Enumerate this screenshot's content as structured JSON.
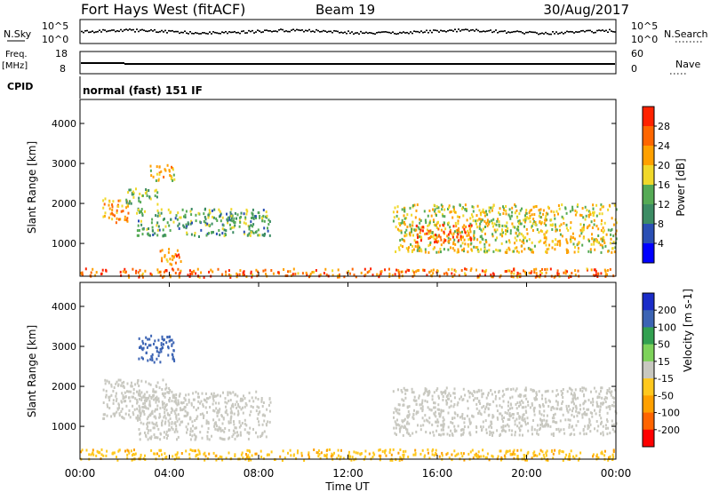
{
  "header": {
    "station": "Fort Hays West (fitACF)",
    "beam": "Beam 19",
    "date": "30/Aug/2017"
  },
  "panels": {
    "nsky_label": "N.Sky",
    "nsearch_label": "N.Search",
    "noise_ticks": [
      "10^5",
      "10^0"
    ],
    "freq_label": "Freq.",
    "freq_unit": "[MHz]",
    "freq_ticks": [
      "18",
      "8"
    ],
    "nave_label": "Nave",
    "nave_ticks": [
      "60",
      "0"
    ],
    "cpid_label": "CPID",
    "cpid_value": "normal (fast) 151 IF"
  },
  "colors": {
    "power_scale": [
      "#0000ff",
      "#2a4fb4",
      "#3c8c64",
      "#55aa55",
      "#f0d82a",
      "#ffa000",
      "#ff6600",
      "#ff2200"
    ],
    "velocity_scale": [
      "#1a2cc8",
      "#3c64b4",
      "#32a050",
      "#7dd25a",
      "#c8c8c0",
      "#ffc81e",
      "#ffa000",
      "#ff6400",
      "#ff0000"
    ]
  },
  "chart_data": [
    {
      "type": "heatmap",
      "name": "power",
      "xlabel": "",
      "ylabel": "Slant Range [km]",
      "xlim": [
        "00:00",
        "24:00"
      ],
      "ylim": [
        180,
        4600
      ],
      "yticks": [
        1000,
        2000,
        3000,
        4000
      ],
      "colorbar": {
        "label": "Power [dB]",
        "ticks": [
          4,
          8,
          12,
          16,
          20,
          24,
          28
        ],
        "range": [
          0,
          32
        ]
      },
      "features": [
        {
          "t_start": 1.0,
          "t_end": 2.2,
          "range_start": 1550,
          "range_end": 2150,
          "value": 22
        },
        {
          "t_start": 2.0,
          "t_end": 3.5,
          "range_start": 2000,
          "range_end": 2400,
          "value": 14
        },
        {
          "t_start": 3.0,
          "t_end": 4.2,
          "range_start": 2600,
          "range_end": 3000,
          "value": 20
        },
        {
          "t_start": 2.5,
          "t_end": 8.5,
          "range_start": 1200,
          "range_end": 1900,
          "value": 13
        },
        {
          "t_start": 3.5,
          "t_end": 4.5,
          "range_start": 500,
          "range_end": 900,
          "value": 24
        },
        {
          "t_start": 0.0,
          "t_end": 24.0,
          "range_start": 180,
          "range_end": 400,
          "value": 25
        },
        {
          "t_start": 14.0,
          "t_end": 24.0,
          "range_start": 800,
          "range_end": 2000,
          "value": 18
        },
        {
          "t_start": 15.0,
          "t_end": 17.5,
          "range_start": 1050,
          "range_end": 1500,
          "value": 26
        }
      ]
    },
    {
      "type": "heatmap",
      "name": "velocity",
      "xlabel": "Time UT",
      "ylabel": "Slant Range [km]",
      "xlim": [
        "00:00",
        "24:00"
      ],
      "xticks": [
        "00:00",
        "04:00",
        "08:00",
        "12:00",
        "16:00",
        "20:00",
        "00:00"
      ],
      "ylim": [
        180,
        4600
      ],
      "yticks": [
        1000,
        2000,
        3000,
        4000
      ],
      "colorbar": {
        "label": "Velocity [m s-1]",
        "ticks": [
          200,
          100,
          50,
          15,
          -15,
          -50,
          -100,
          -200
        ],
        "range": [
          -250,
          250
        ]
      },
      "features": [
        {
          "t_start": 1.0,
          "t_end": 4.0,
          "range_start": 1200,
          "range_end": 2200,
          "value": 0
        },
        {
          "t_start": 2.5,
          "t_end": 4.2,
          "range_start": 2600,
          "range_end": 3300,
          "value": 180
        },
        {
          "t_start": 2.5,
          "t_end": 8.5,
          "range_start": 700,
          "range_end": 1900,
          "value": 0
        },
        {
          "t_start": 0.0,
          "t_end": 24.0,
          "range_start": 180,
          "range_end": 450,
          "value": -40
        },
        {
          "t_start": 14.0,
          "t_end": 24.0,
          "range_start": 800,
          "range_end": 2000,
          "value": 0
        }
      ]
    }
  ]
}
